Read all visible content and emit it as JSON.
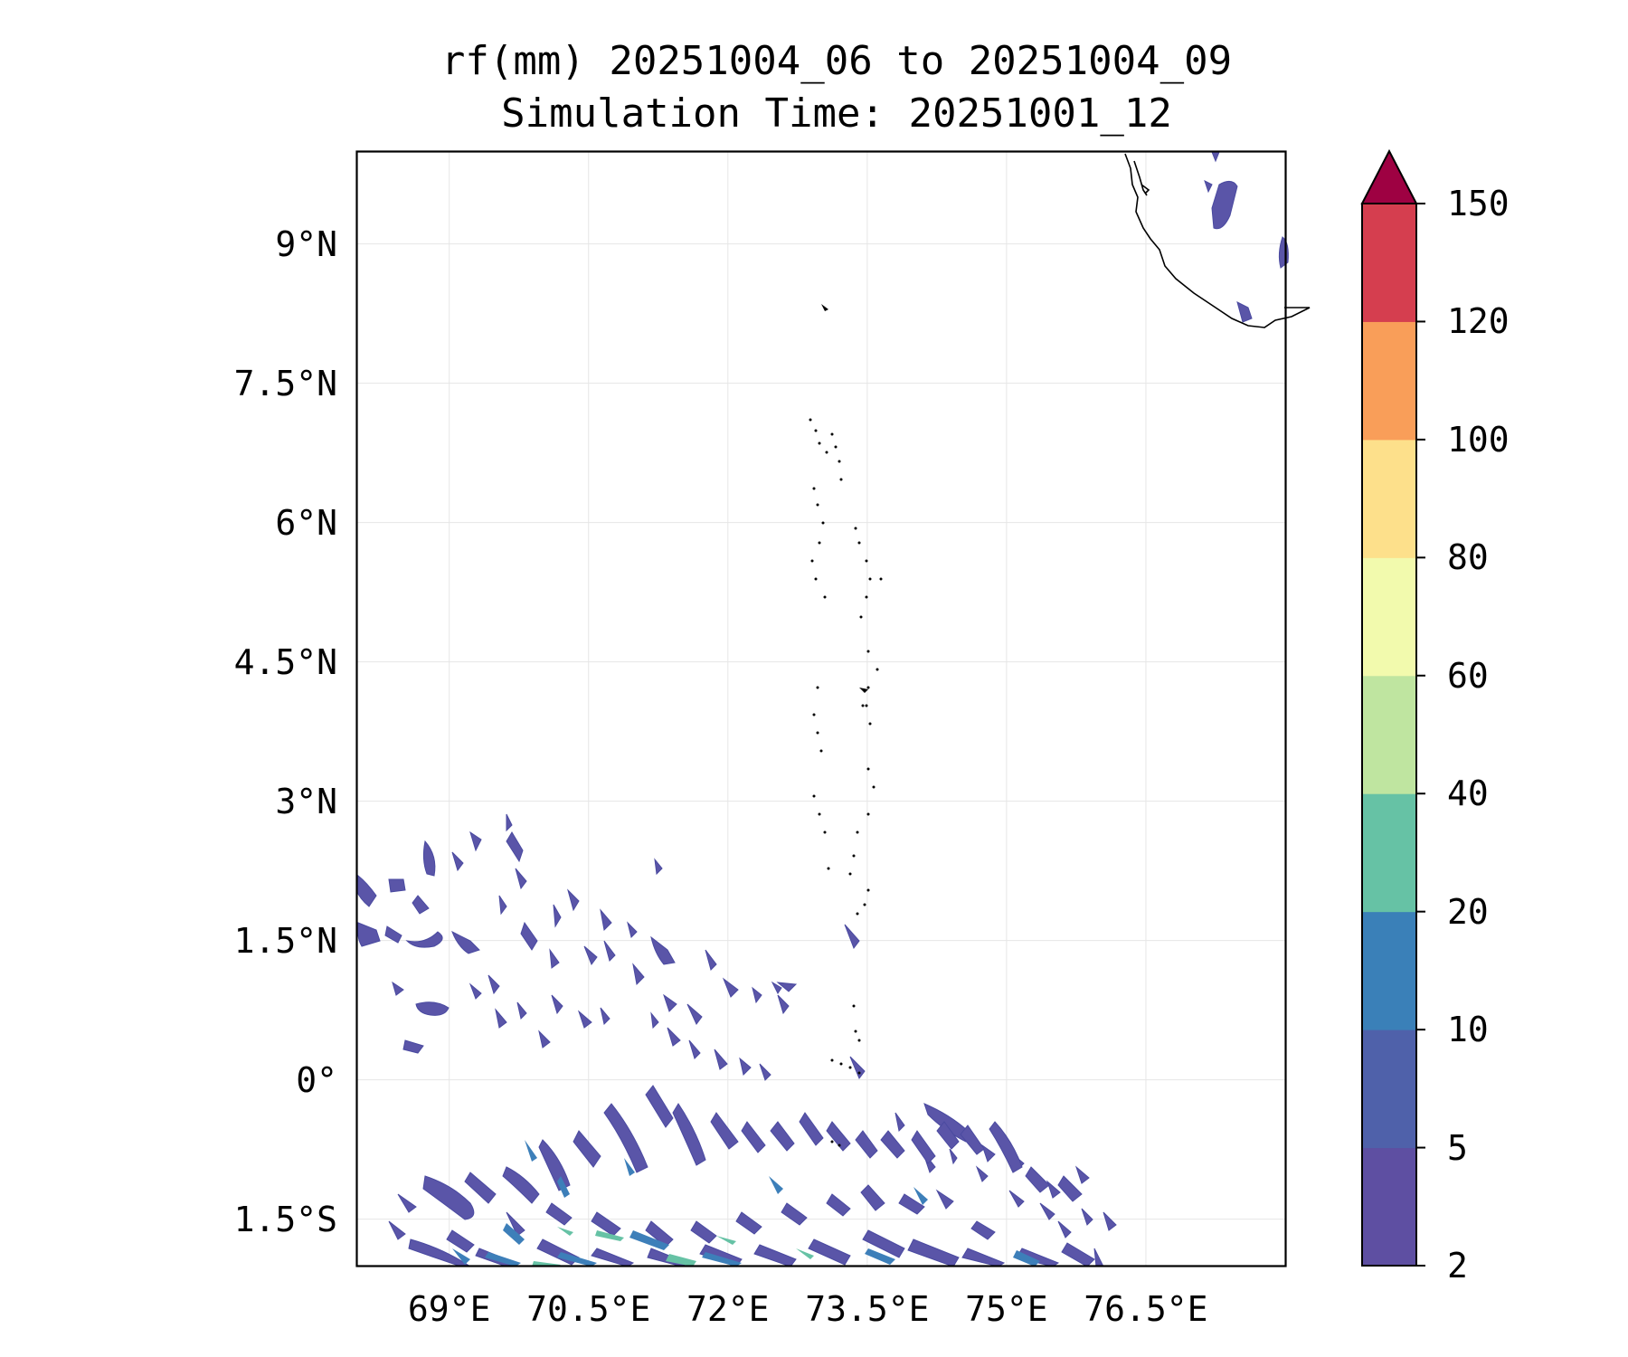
{
  "title": {
    "line1": "rf(mm) 20251004_06 to 20251004_09",
    "line2": "Simulation Time: 20251001_12"
  },
  "map": {
    "extent": {
      "lon_min": 68.0,
      "lon_max": 78.0,
      "lat_min": -2.0,
      "lat_max": 10.0
    },
    "lat_ticks": [
      {
        "value": 9.0,
        "label": "9°N"
      },
      {
        "value": 7.5,
        "label": "7.5°N"
      },
      {
        "value": 6.0,
        "label": "6°N"
      },
      {
        "value": 4.5,
        "label": "4.5°N"
      },
      {
        "value": 3.0,
        "label": "3°N"
      },
      {
        "value": 1.5,
        "label": "1.5°N"
      },
      {
        "value": 0.0,
        "label": "0°"
      },
      {
        "value": -1.5,
        "label": "1.5°S"
      }
    ],
    "lon_ticks": [
      {
        "value": 69.0,
        "label": "69°E"
      },
      {
        "value": 70.5,
        "label": "70.5°E"
      },
      {
        "value": 72.0,
        "label": "72°E"
      },
      {
        "value": 73.5,
        "label": "73.5°E"
      },
      {
        "value": 75.0,
        "label": "75°E"
      },
      {
        "value": 76.5,
        "label": "76.5°E"
      }
    ],
    "gridlines": true,
    "coastline_color": "#000000"
  },
  "colorbar": {
    "levels": [
      2,
      5,
      10,
      20,
      40,
      60,
      80,
      100,
      120,
      150
    ],
    "labels": [
      "2",
      "5",
      "10",
      "20",
      "40",
      "60",
      "80",
      "100",
      "120",
      "150"
    ],
    "colors": [
      "#5e4fa2",
      "#4f61aa",
      "#3a80b8",
      "#66c2a5",
      "#bfe5a0",
      "#f2faad",
      "#fde08b",
      "#f99e59",
      "#d53e4f",
      "#9e0142"
    ],
    "extend": "max"
  },
  "rain_colors": {
    "light": "#5a55a8",
    "moderate": "#3d7fb9",
    "heavy": "#66c2a5"
  }
}
